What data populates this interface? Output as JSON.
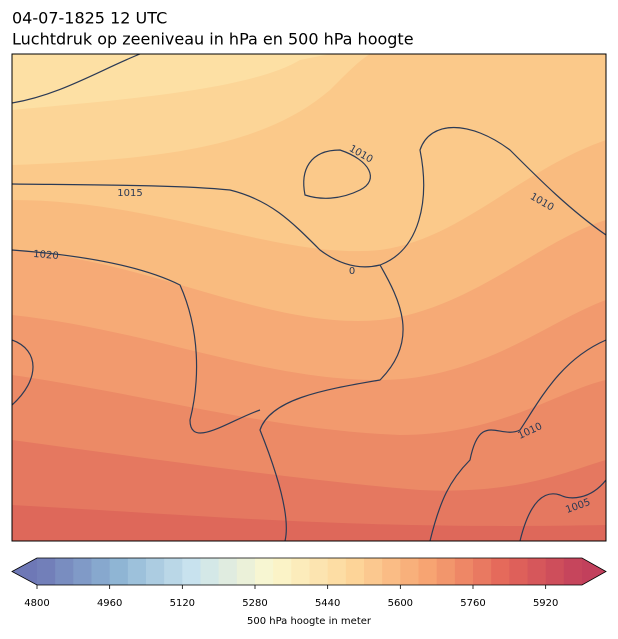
{
  "header": {
    "date": "04-07-1825 12 UTC",
    "title": "Luchtdruk op zeeniveau in hPa en 500 hPa hoogte"
  },
  "map": {
    "isobar_labels": [
      1015,
      1020,
      1010,
      1010,
      1010,
      1005,
      0
    ]
  },
  "colorbar": {
    "label": "500 hPa hoogte in meter",
    "range": [
      4800,
      6000
    ],
    "step": 40,
    "ticks": [
      4800,
      4960,
      5120,
      5280,
      5440,
      5600,
      5760,
      5920
    ],
    "colors": [
      "#6e78b6",
      "#8cb3d3",
      "#c9e3ee",
      "#fbf8cf",
      "#fdd89c",
      "#f7a572",
      "#e4675a",
      "#c2405c"
    ]
  }
}
